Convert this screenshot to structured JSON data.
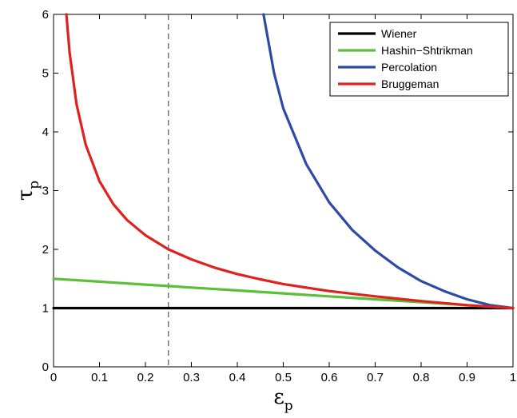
{
  "chart_data": {
    "type": "line",
    "xlabel": {
      "symbol": "ε",
      "subscript": "p"
    },
    "ylabel": {
      "symbol": "τ",
      "subscript": "p"
    },
    "xlim": [
      0,
      1
    ],
    "ylim": [
      0,
      6
    ],
    "xticks": [
      "0",
      "0.1",
      "0.2",
      "0.3",
      "0.4",
      "0.5",
      "0.6",
      "0.7",
      "0.8",
      "0.9",
      "1"
    ],
    "yticks": [
      "0",
      "1",
      "2",
      "3",
      "4",
      "5",
      "6"
    ],
    "grid": false,
    "legend_position": "top-right",
    "reference_line": {
      "x": 0.25,
      "style": "dashed",
      "color": "#555555"
    },
    "series": [
      {
        "name": "Wiener",
        "color": "#000000",
        "x": [
          0,
          1
        ],
        "y": [
          1,
          1
        ]
      },
      {
        "name": "Hashin−Shtrikman",
        "color": "#5cbf3b",
        "x": [
          0,
          0.1,
          0.2,
          0.25,
          0.3,
          0.4,
          0.5,
          0.6,
          0.7,
          0.8,
          0.9,
          1.0
        ],
        "y": [
          1.5,
          1.45,
          1.4,
          1.375,
          1.35,
          1.3,
          1.25,
          1.2,
          1.15,
          1.1,
          1.05,
          1.0
        ]
      },
      {
        "name": "Percolation",
        "color": "#2c4aa6",
        "x": [
          0.457,
          0.48,
          0.5,
          0.55,
          0.6,
          0.65,
          0.7,
          0.75,
          0.8,
          0.85,
          0.9,
          0.95,
          1.0
        ],
        "y": [
          6.0,
          5.0,
          4.4,
          3.45,
          2.8,
          2.33,
          1.98,
          1.69,
          1.46,
          1.29,
          1.15,
          1.05,
          1.0
        ]
      },
      {
        "name": "Bruggeman",
        "color": "#e0211d",
        "x": [
          0.028,
          0.035,
          0.05,
          0.07,
          0.1,
          0.13,
          0.16,
          0.2,
          0.25,
          0.3,
          0.35,
          0.4,
          0.45,
          0.5,
          0.6,
          0.7,
          0.8,
          0.9,
          1.0
        ],
        "y": [
          6.0,
          5.35,
          4.47,
          3.78,
          3.16,
          2.77,
          2.5,
          2.24,
          2.0,
          1.83,
          1.69,
          1.58,
          1.49,
          1.41,
          1.29,
          1.2,
          1.12,
          1.05,
          1.0
        ]
      }
    ]
  }
}
